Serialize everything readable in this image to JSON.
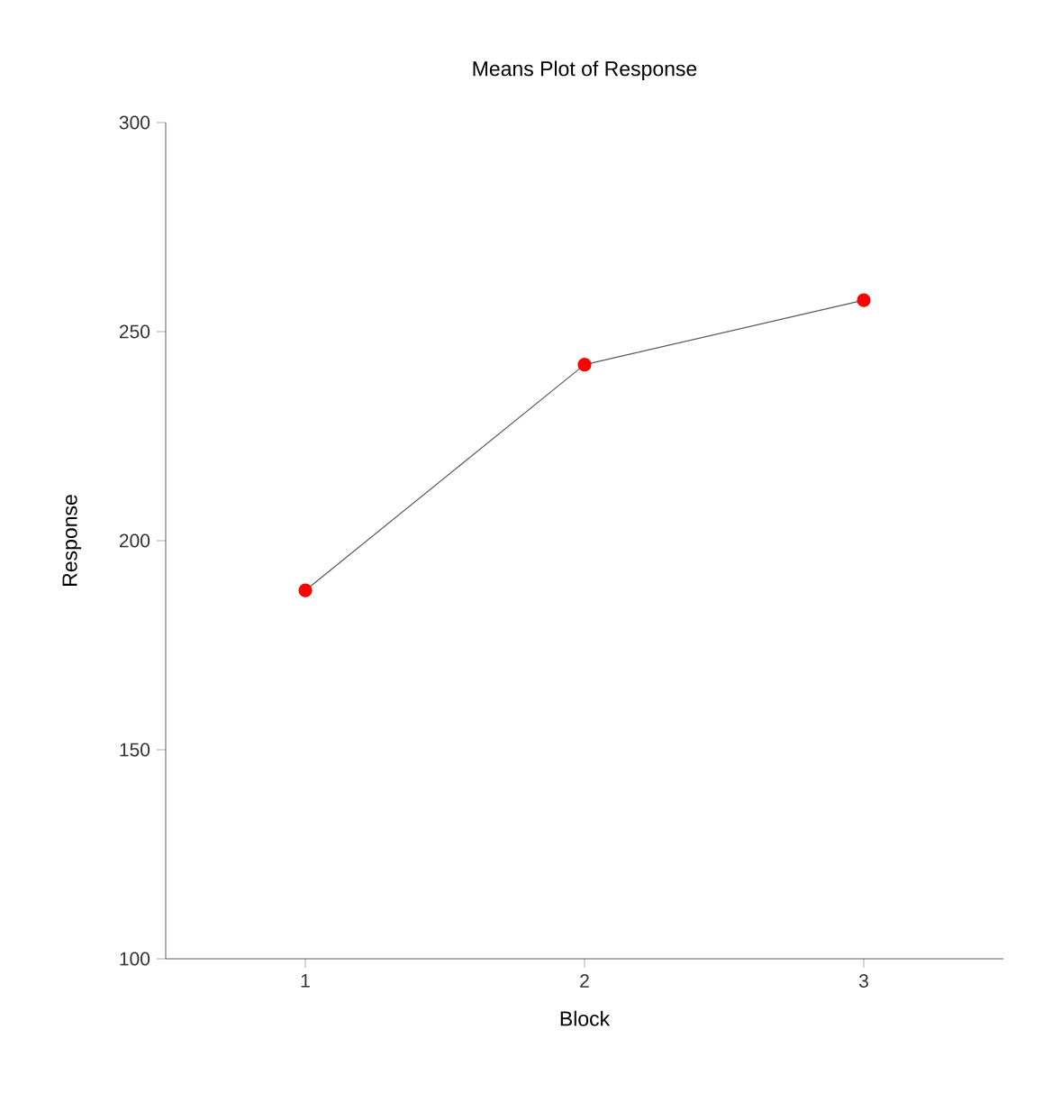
{
  "chart_data": {
    "type": "line",
    "title": "Means Plot of Response",
    "xlabel": "Block",
    "ylabel": "Response",
    "categories": [
      "1",
      "2",
      "3"
    ],
    "series": [
      {
        "color": "#ff0000",
        "values": [
          188.1,
          242.1,
          257.5
        ]
      }
    ],
    "ylim": [
      100,
      300
    ],
    "yticks": [
      100,
      150,
      200,
      250,
      300
    ],
    "grid": false,
    "marker": "circle",
    "line_style": "solid"
  }
}
